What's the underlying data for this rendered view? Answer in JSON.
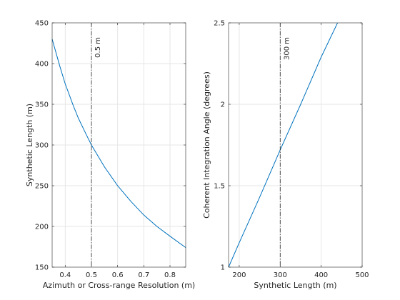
{
  "chart_data": [
    {
      "type": "line",
      "xlabel": "Azimuth or Cross-range Resolution (m)",
      "ylabel": "Synthetic Length (m)",
      "xlim": [
        0.35,
        0.86
      ],
      "ylim": [
        150,
        450
      ],
      "xticks": [
        0.4,
        0.5,
        0.6,
        0.7,
        0.8
      ],
      "xtick_labels": [
        "0.4",
        "0.5",
        "0.6",
        "0.7",
        "0.8"
      ],
      "yticks": [
        150,
        200,
        250,
        300,
        350,
        400,
        450
      ],
      "ytick_labels": [
        "150",
        "200",
        "250",
        "300",
        "350",
        "400",
        "450"
      ],
      "grid": true,
      "series": [
        {
          "color": "#0072BD",
          "x": [
            0.35,
            0.38,
            0.4,
            0.43,
            0.45,
            0.48,
            0.5,
            0.55,
            0.6,
            0.65,
            0.7,
            0.75,
            0.8,
            0.86
          ],
          "y": [
            430,
            396,
            375,
            349,
            333,
            313,
            300,
            273,
            250,
            231,
            214,
            200,
            188,
            174
          ]
        }
      ],
      "vline": {
        "x": 0.5,
        "label": "0.5 m",
        "color": "#262626"
      }
    },
    {
      "type": "line",
      "xlabel": "Synthetic Length (m)",
      "ylabel": "Coherent Integration Angle (degrees)",
      "xlim": [
        174,
        500
      ],
      "ylim": [
        1,
        2.5
      ],
      "xticks": [
        200,
        300,
        400,
        500
      ],
      "xtick_labels": [
        "200",
        "300",
        "400",
        "500"
      ],
      "yticks": [
        1,
        1.5,
        2,
        2.5
      ],
      "ytick_labels": [
        "1",
        "1.5",
        "2",
        "2.5"
      ],
      "grid": true,
      "series": [
        {
          "color": "#0072BD",
          "x": [
            174,
            200,
            250,
            300,
            350,
            400,
            440
          ],
          "y": [
            1.0,
            1.15,
            1.43,
            1.72,
            2.0,
            2.29,
            2.5
          ]
        }
      ],
      "vline": {
        "x": 300,
        "label": "300 m",
        "color": "#262626"
      }
    }
  ]
}
